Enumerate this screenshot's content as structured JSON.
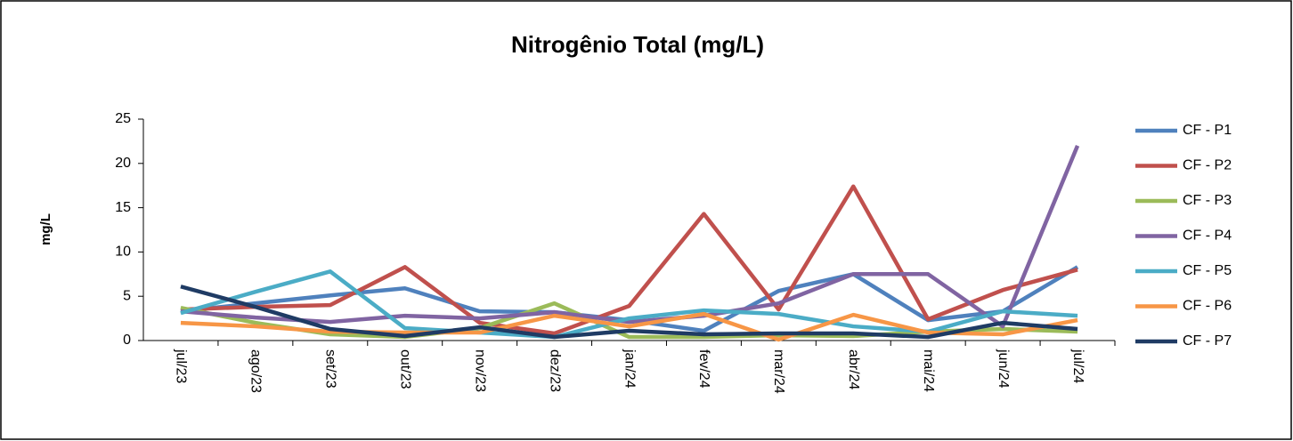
{
  "chart_data": {
    "type": "line",
    "title": "Nitrogênio Total (mg/L)",
    "y_label": "mg/L",
    "categories": [
      "jul/23",
      "ago/23",
      "set/23",
      "out/23",
      "nov/23",
      "dez/23",
      "jan/24",
      "fev/24",
      "mar/24",
      "abr/24",
      "mai/24",
      "jun/24",
      "jul/24"
    ],
    "ylim": [
      0,
      25
    ],
    "yticks": [
      0,
      5,
      10,
      15,
      20,
      25
    ],
    "grid": false,
    "legend": "right",
    "series": [
      {
        "name": "CF - P1",
        "color": "#4f81bd",
        "values": [
          3.3,
          4.2,
          5.1,
          5.9,
          3.3,
          3.2,
          2.3,
          1.1,
          5.6,
          7.5,
          2.3,
          3.3,
          8.3
        ]
      },
      {
        "name": "CF - P2",
        "color": "#c0504d",
        "values": [
          3.5,
          3.8,
          4.0,
          8.3,
          2.0,
          0.8,
          3.9,
          14.3,
          3.5,
          17.4,
          2.4,
          5.7,
          8.0
        ]
      },
      {
        "name": "CF - P3",
        "color": "#9bbb59",
        "values": [
          3.7,
          2.0,
          0.7,
          0.4,
          1.4,
          4.2,
          0.4,
          0.4,
          0.6,
          0.5,
          1.0,
          1.3,
          1.0
        ]
      },
      {
        "name": "CF - P4",
        "color": "#8064a2",
        "values": [
          3.3,
          2.6,
          2.1,
          2.8,
          2.5,
          3.2,
          2.1,
          2.8,
          4.2,
          7.5,
          7.5,
          1.6,
          22.0
        ]
      },
      {
        "name": "CF - P5",
        "color": "#4bacc6",
        "values": [
          3.1,
          5.5,
          7.8,
          1.4,
          0.9,
          0.4,
          2.5,
          3.4,
          3.0,
          1.6,
          1.0,
          3.3,
          2.8
        ]
      },
      {
        "name": "CF - P6",
        "color": "#f79646",
        "values": [
          2.0,
          1.6,
          1.0,
          0.9,
          0.9,
          2.8,
          1.6,
          3.0,
          0.1,
          2.9,
          0.9,
          0.7,
          2.3
        ]
      },
      {
        "name": "CF - P7",
        "color": "#1f3b64",
        "values": [
          6.1,
          3.8,
          1.3,
          0.5,
          1.5,
          0.4,
          1.1,
          0.7,
          0.8,
          0.8,
          0.4,
          2.0,
          1.3
        ]
      }
    ]
  }
}
